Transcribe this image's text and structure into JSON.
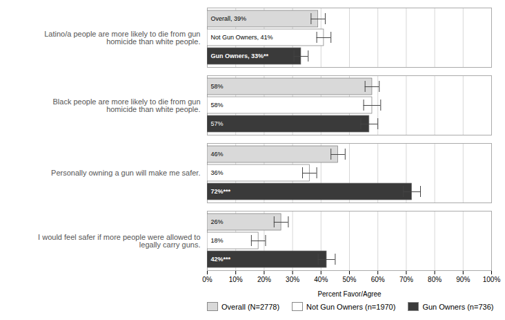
{
  "chart_data": {
    "type": "bar",
    "orientation": "horizontal",
    "categories": [
      "Latino/a people are more likely to die from gun homicide than white people.",
      "Black people are more likely to die from gun homicide than white people.",
      "Personally owning a gun will make me safer.",
      "I would feel safer if more people were allowed to legally carry guns."
    ],
    "series": [
      {
        "name": "Overall (N=2778)",
        "color": "#d9d9d9",
        "values": [
          39,
          58,
          46,
          26
        ],
        "value_labels": [
          "Overall, 39%",
          "58%",
          "46%",
          "26%"
        ],
        "errors": [
          2.5,
          2.5,
          2.5,
          2.5
        ]
      },
      {
        "name": "Not Gun Owners (n=1970)",
        "color": "#ffffff",
        "values": [
          41,
          58,
          36,
          18
        ],
        "value_labels": [
          "Not Gun Owners, 41%",
          "58%",
          "36%",
          "18%"
        ],
        "errors": [
          2.5,
          3,
          2.5,
          2.5
        ]
      },
      {
        "name": "Gun Owners (n=736)",
        "color": "#3a3a3a",
        "values": [
          33,
          57,
          72,
          42
        ],
        "value_labels": [
          "Gun Owners, 33%**",
          "57%",
          "72%***",
          "42%***"
        ],
        "errors": [
          2.5,
          3,
          3,
          3
        ]
      }
    ],
    "xlabel": "Percent Favor/Agree",
    "xlim": [
      0,
      100
    ],
    "xticks": [
      {
        "value": 0,
        "label": "0%"
      },
      {
        "value": 10,
        "label": "10%"
      },
      {
        "value": 20,
        "label": "20%"
      },
      {
        "value": 30,
        "label": "30%"
      },
      {
        "value": 40,
        "label": "40%"
      },
      {
        "value": 50,
        "label": "50%"
      },
      {
        "value": 60,
        "label": "60%"
      },
      {
        "value": 70,
        "label": "70%"
      },
      {
        "value": 80,
        "label": "80%"
      },
      {
        "value": 90,
        "label": "90%"
      },
      {
        "value": 100,
        "label": "100%"
      }
    ],
    "grid": true,
    "legend": "bottom",
    "data_labels": true
  }
}
